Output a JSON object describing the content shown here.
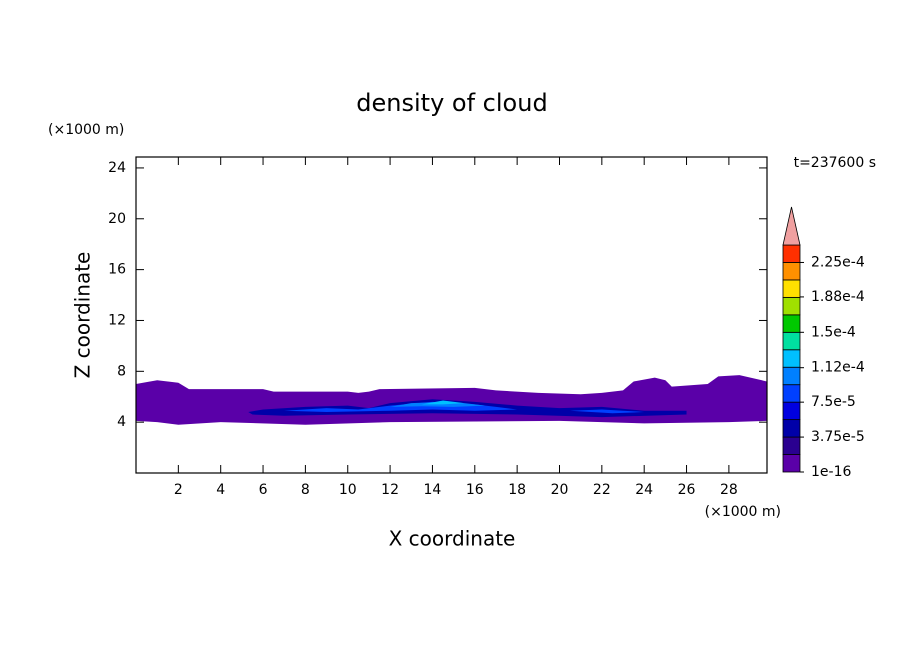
{
  "chart_data": {
    "type": "contour",
    "title": "density of cloud",
    "x_label": "X coordinate",
    "y_label": "Z coordinate",
    "x_unit": "(×1000 m)",
    "y_unit": "(×1000 m)",
    "annotation": "t=237600 s",
    "xlim": [
      0,
      29.8
    ],
    "ylim": [
      0,
      24.86
    ],
    "xticks": [
      2,
      4,
      6,
      8,
      10,
      12,
      14,
      16,
      18,
      20,
      22,
      24,
      26,
      28
    ],
    "yticks": [
      4,
      8,
      12,
      16,
      20,
      24
    ],
    "colorbar": {
      "levels": [
        1e-16,
        1.875e-05,
        3.75e-05,
        5.625e-05,
        7.5e-05,
        9.375e-05,
        0.0001125,
        0.00013125,
        0.00015,
        0.00016875,
        0.0001875,
        0.00020625,
        0.000225,
        0.00024375
      ],
      "colors": [
        "#5a00a8",
        "#2a0090",
        "#0000a8",
        "#0000e0",
        "#0040ff",
        "#0080ff",
        "#00c0ff",
        "#00e0a0",
        "#00c800",
        "#a0e000",
        "#ffe000",
        "#ff9000",
        "#ff3000"
      ],
      "extend_color": "#f0a0a0",
      "ticks": [
        {
          "value": 1e-16,
          "label": "1e-16"
        },
        {
          "value": 3.75e-05,
          "label": "3.75e-5"
        },
        {
          "value": 7.5e-05,
          "label": "7.5e-5"
        },
        {
          "value": 0.000112,
          "label": "1.12e-4"
        },
        {
          "value": 0.00015,
          "label": "1.5e-4"
        },
        {
          "value": 0.000188,
          "label": "1.88e-4"
        },
        {
          "value": 0.000225,
          "label": "2.25e-4"
        }
      ]
    },
    "regions": [
      {
        "level": 1e-16,
        "x": [
          0,
          0,
          1,
          2,
          2.5,
          6,
          6.5,
          10,
          10.5,
          11,
          11.5,
          16,
          17,
          19,
          21,
          22,
          23,
          23.5,
          24.5,
          25,
          25.3,
          27,
          27.5,
          28.5,
          29.8,
          29.8,
          28,
          24,
          22,
          20,
          12,
          8,
          4,
          2,
          1
        ],
        "z": [
          4.1,
          7.0,
          7.3,
          7.1,
          6.6,
          6.6,
          6.4,
          6.4,
          6.3,
          6.4,
          6.6,
          6.7,
          6.5,
          6.3,
          6.2,
          6.3,
          6.5,
          7.2,
          7.5,
          7.3,
          6.8,
          7.0,
          7.6,
          7.7,
          7.2,
          4.1,
          4.0,
          3.9,
          4.0,
          4.1,
          4.0,
          3.8,
          4.0,
          3.8,
          4.0
        ]
      },
      {
        "level": 3.75e-05,
        "x": [
          5.3,
          6,
          8,
          10,
          11,
          12,
          14,
          16,
          18,
          20,
          22,
          24,
          26,
          26,
          22,
          18,
          14,
          10,
          7,
          5.5
        ],
        "z": [
          4.8,
          5.0,
          5.2,
          5.3,
          5.1,
          5.5,
          5.8,
          5.6,
          5.3,
          5.1,
          5.2,
          4.9,
          4.9,
          4.6,
          4.4,
          4.6,
          4.7,
          4.6,
          4.5,
          4.6
        ]
      },
      {
        "level": 7.5e-05,
        "x": [
          7,
          9,
          10.5,
          12,
          14,
          16,
          17,
          18,
          16,
          14,
          12,
          9
        ],
        "z": [
          4.9,
          5.1,
          5.0,
          5.3,
          5.6,
          5.4,
          5.2,
          5.0,
          4.9,
          5.0,
          4.9,
          4.8
        ]
      },
      {
        "level": 7.5e-05,
        "x": [
          20.5,
          22,
          24,
          22.5
        ],
        "z": [
          4.9,
          5.0,
          4.8,
          4.7
        ]
      },
      {
        "level": 9.375e-05,
        "x": [
          12,
          13,
          14.5,
          15.5,
          16.5,
          15,
          13.5
        ],
        "z": [
          5.2,
          5.5,
          5.6,
          5.5,
          5.3,
          5.2,
          5.25
        ]
      },
      {
        "level": 0.0001125,
        "x": [
          13.5,
          14.5,
          15.5,
          14.5
        ],
        "z": [
          5.4,
          5.7,
          5.5,
          5.4
        ]
      }
    ]
  }
}
